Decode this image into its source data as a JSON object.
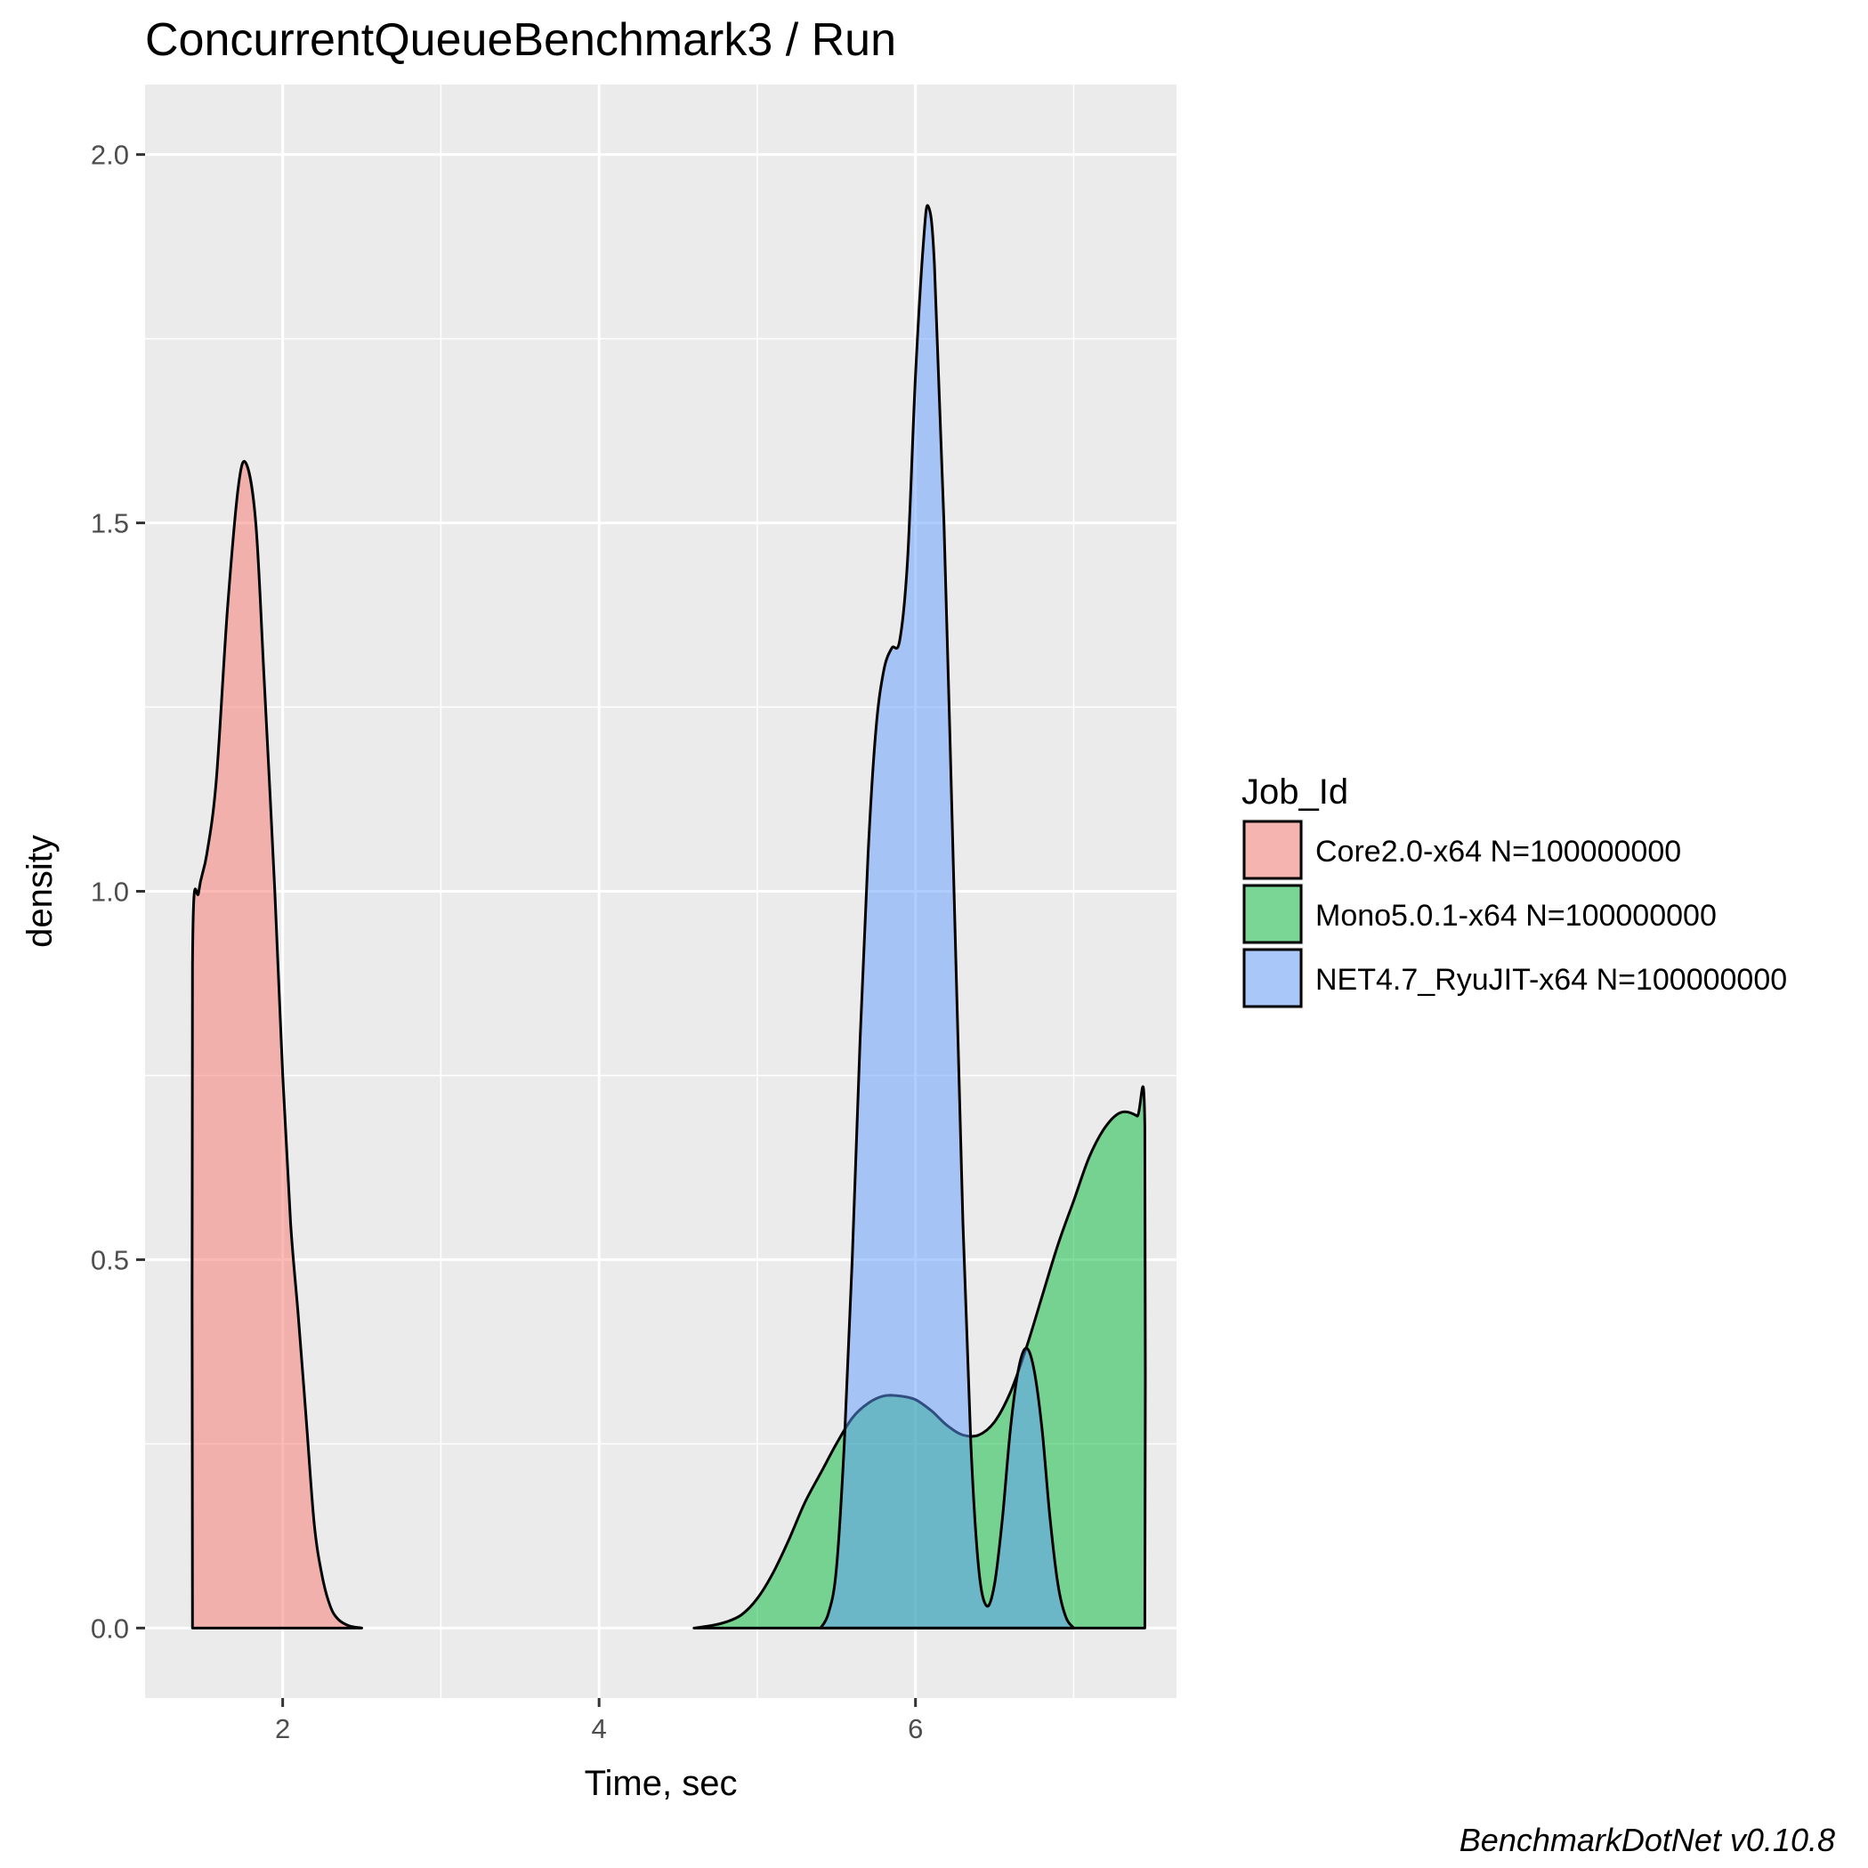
{
  "chart_data": {
    "type": "area",
    "subtype": "density",
    "title": "ConcurrentQueueBenchmark3 / Run",
    "xlabel": "Time, sec",
    "ylabel": "density",
    "caption": "BenchmarkDotNet v0.10.8",
    "xlim": [
      1.13,
      7.65
    ],
    "ylim": [
      -0.095,
      2.095
    ],
    "x_ticks": [
      2,
      4,
      6
    ],
    "x_tick_labels": [
      "2",
      "4",
      "6"
    ],
    "x_minor_ticks": [
      3,
      5,
      7
    ],
    "y_ticks": [
      0.0,
      0.5,
      1.0,
      1.5,
      2.0
    ],
    "y_tick_labels": [
      "0.0",
      "0.5",
      "1.0",
      "1.5",
      "2.0"
    ],
    "y_minor_ticks": [
      0.25,
      0.75,
      1.25,
      1.75
    ],
    "grid": true,
    "panel_background": "#ebebeb",
    "grid_color": "#ffffff",
    "legend": {
      "title": "Job_Id",
      "position": "right"
    },
    "series": [
      {
        "name": "Core2.0-x64 N=100000000",
        "color": "#f8766d",
        "points": [
          [
            1.43,
            0.0
          ],
          [
            1.43,
            0.9
          ],
          [
            1.47,
            1.0
          ],
          [
            1.52,
            1.05
          ],
          [
            1.58,
            1.15
          ],
          [
            1.65,
            1.38
          ],
          [
            1.72,
            1.55
          ],
          [
            1.77,
            1.58
          ],
          [
            1.83,
            1.5
          ],
          [
            1.88,
            1.3
          ],
          [
            1.95,
            1.0
          ],
          [
            2.0,
            0.75
          ],
          [
            2.05,
            0.55
          ],
          [
            2.1,
            0.42
          ],
          [
            2.15,
            0.28
          ],
          [
            2.2,
            0.14
          ],
          [
            2.25,
            0.07
          ],
          [
            2.3,
            0.03
          ],
          [
            2.35,
            0.012
          ],
          [
            2.42,
            0.003
          ],
          [
            2.5,
            0.0
          ]
        ]
      },
      {
        "name": "Mono5.0.1-x64 N=100000000",
        "color": "#00ba38",
        "points": [
          [
            4.6,
            0.0
          ],
          [
            4.7,
            0.003
          ],
          [
            4.8,
            0.008
          ],
          [
            4.9,
            0.018
          ],
          [
            5.0,
            0.04
          ],
          [
            5.1,
            0.075
          ],
          [
            5.2,
            0.12
          ],
          [
            5.3,
            0.17
          ],
          [
            5.4,
            0.21
          ],
          [
            5.5,
            0.25
          ],
          [
            5.6,
            0.285
          ],
          [
            5.7,
            0.305
          ],
          [
            5.8,
            0.315
          ],
          [
            5.9,
            0.315
          ],
          [
            6.0,
            0.31
          ],
          [
            6.1,
            0.295
          ],
          [
            6.2,
            0.275
          ],
          [
            6.3,
            0.262
          ],
          [
            6.4,
            0.262
          ],
          [
            6.5,
            0.28
          ],
          [
            6.6,
            0.32
          ],
          [
            6.7,
            0.38
          ],
          [
            6.8,
            0.45
          ],
          [
            6.9,
            0.52
          ],
          [
            7.0,
            0.58
          ],
          [
            7.1,
            0.64
          ],
          [
            7.2,
            0.68
          ],
          [
            7.3,
            0.7
          ],
          [
            7.4,
            0.695
          ],
          [
            7.45,
            0.68
          ],
          [
            7.45,
            0.0
          ]
        ]
      },
      {
        "name": "NET4.7_RyuJIT-x64 N=100000000",
        "color": "#619cff",
        "points": [
          [
            5.4,
            0.0
          ],
          [
            5.45,
            0.02
          ],
          [
            5.5,
            0.08
          ],
          [
            5.55,
            0.25
          ],
          [
            5.6,
            0.5
          ],
          [
            5.65,
            0.8
          ],
          [
            5.7,
            1.05
          ],
          [
            5.75,
            1.22
          ],
          [
            5.8,
            1.3
          ],
          [
            5.85,
            1.33
          ],
          [
            5.9,
            1.34
          ],
          [
            5.95,
            1.45
          ],
          [
            6.0,
            1.7
          ],
          [
            6.05,
            1.88
          ],
          [
            6.08,
            1.93
          ],
          [
            6.12,
            1.85
          ],
          [
            6.18,
            1.5
          ],
          [
            6.25,
            0.95
          ],
          [
            6.3,
            0.55
          ],
          [
            6.35,
            0.25
          ],
          [
            6.4,
            0.08
          ],
          [
            6.45,
            0.03
          ],
          [
            6.5,
            0.06
          ],
          [
            6.55,
            0.15
          ],
          [
            6.6,
            0.27
          ],
          [
            6.65,
            0.35
          ],
          [
            6.7,
            0.38
          ],
          [
            6.75,
            0.35
          ],
          [
            6.8,
            0.27
          ],
          [
            6.85,
            0.15
          ],
          [
            6.9,
            0.06
          ],
          [
            6.95,
            0.015
          ],
          [
            7.0,
            0.0
          ]
        ]
      }
    ]
  }
}
